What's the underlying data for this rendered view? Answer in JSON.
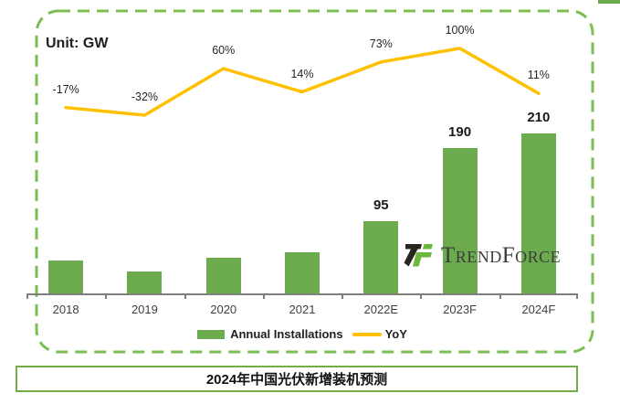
{
  "page": {
    "unit_label": "Unit: GW"
  },
  "chart_data": {
    "type": "bar",
    "title": "2024年中国光伏新增装机预测",
    "unit": "GW",
    "categories": [
      "2018",
      "2019",
      "2020",
      "2021",
      "2022E",
      "2023F",
      "2024F"
    ],
    "series": [
      {
        "name": "Annual Installations",
        "type": "bar",
        "values": [
          44,
          30,
          48,
          55,
          95,
          190,
          210
        ],
        "value_labels": [
          "",
          "",
          "",
          "",
          "95",
          "190",
          "210"
        ]
      },
      {
        "name": "YoY",
        "type": "line",
        "values_pct": [
          -17,
          -32,
          60,
          14,
          73,
          100,
          11
        ],
        "value_labels": [
          "-17%",
          "-32%",
          "60%",
          "14%",
          "73%",
          "100%",
          "11%"
        ]
      }
    ],
    "legend_position": "bottom",
    "gridlines": false,
    "y_axis_visible": false
  },
  "legend": {
    "items": [
      {
        "label": "Annual Installations",
        "marker": "bar-swatch"
      },
      {
        "label": "YoY",
        "marker": "line-swatch"
      }
    ]
  },
  "logo": {
    "text": "TrendForce"
  },
  "footer": {
    "title": "2024年中国光伏新增装机预测"
  },
  "colors": {
    "bar": "#6CAB4D",
    "line": "#FFC000",
    "frame": "#7CBE53",
    "axis": "#7F7F7F",
    "footer_border": "#71AE47",
    "logo_green": "#6CB83E",
    "logo_black": "#2B2520",
    "label_dark": "#262626"
  }
}
